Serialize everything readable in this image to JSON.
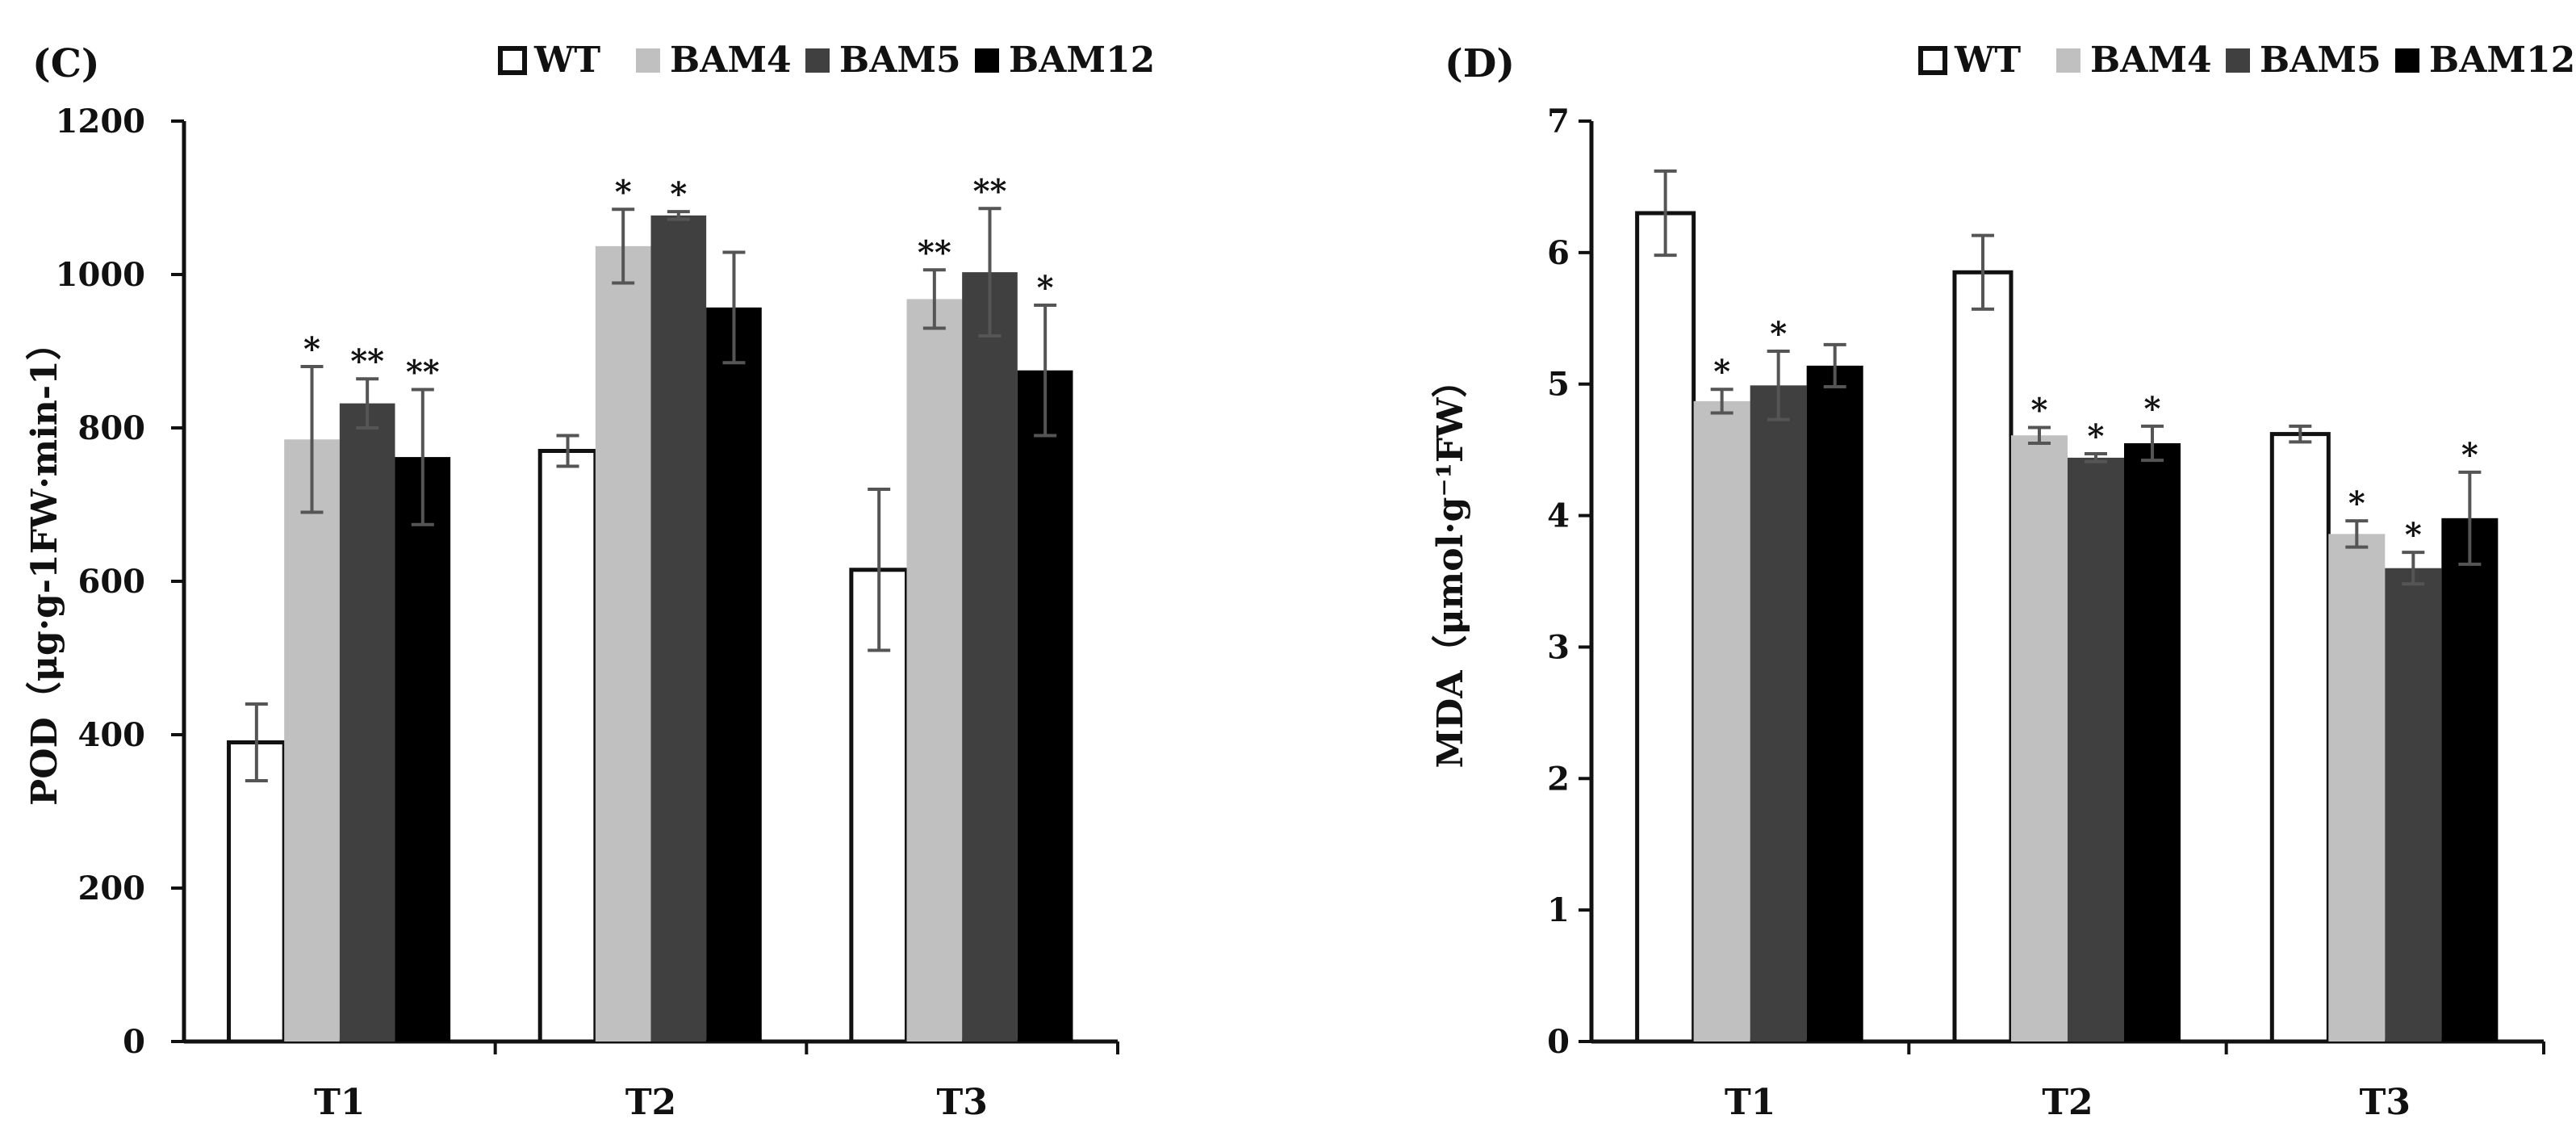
{
  "chart_data": [
    {
      "type": "bar",
      "panel_label": "(C)",
      "ylabel": "POD（μg·g-1FW·min-1）",
      "xlabel": "",
      "ylim": [
        0,
        1200
      ],
      "yticks": [
        0,
        200,
        400,
        600,
        800,
        1000,
        1200
      ],
      "categories": [
        "T1",
        "T2",
        "T3"
      ],
      "legend_position": "top",
      "series": [
        {
          "name": "WT",
          "fill": "#ffffff",
          "values": [
            390,
            770,
            615
          ],
          "errors": [
            50,
            20,
            105
          ],
          "marks": [
            "",
            "",
            ""
          ]
        },
        {
          "name": "BAM4",
          "fill": "#c0c0c0",
          "values": [
            785,
            1037,
            968
          ],
          "errors": [
            95,
            48,
            38
          ],
          "marks": [
            "*",
            "*",
            "**"
          ]
        },
        {
          "name": "BAM5",
          "fill": "#404040",
          "values": [
            832,
            1077,
            1003
          ],
          "errors": [
            32,
            5,
            83
          ],
          "marks": [
            "**",
            "*",
            "**"
          ]
        },
        {
          "name": "BAM12",
          "fill": "#000000",
          "values": [
            762,
            957,
            875
          ],
          "errors": [
            88,
            72,
            85
          ],
          "marks": [
            "**",
            "",
            "*"
          ]
        }
      ]
    },
    {
      "type": "bar",
      "panel_label": "(D)",
      "ylabel": "MDA（μmol·g⁻¹FW）",
      "xlabel": "",
      "ylim": [
        0,
        7
      ],
      "yticks": [
        0,
        1,
        2,
        3,
        4,
        5,
        6,
        7
      ],
      "categories": [
        "T1",
        "T2",
        "T3"
      ],
      "legend_position": "top",
      "series": [
        {
          "name": "WT",
          "fill": "#ffffff",
          "values": [
            6.3,
            5.85,
            4.62
          ],
          "errors": [
            0.32,
            0.28,
            0.06
          ],
          "marks": [
            "",
            "",
            ""
          ]
        },
        {
          "name": "BAM4",
          "fill": "#c0c0c0",
          "values": [
            4.87,
            4.61,
            3.86
          ],
          "errors": [
            0.09,
            0.06,
            0.1
          ],
          "marks": [
            "*",
            "*",
            "*"
          ]
        },
        {
          "name": "BAM5",
          "fill": "#404040",
          "values": [
            4.99,
            4.44,
            3.6
          ],
          "errors": [
            0.26,
            0.03,
            0.12
          ],
          "marks": [
            "*",
            "*",
            "*"
          ]
        },
        {
          "name": "BAM12",
          "fill": "#000000",
          "values": [
            5.14,
            4.55,
            3.98
          ],
          "errors": [
            0.16,
            0.13,
            0.35
          ],
          "marks": [
            "",
            "*",
            "*"
          ]
        }
      ]
    }
  ]
}
